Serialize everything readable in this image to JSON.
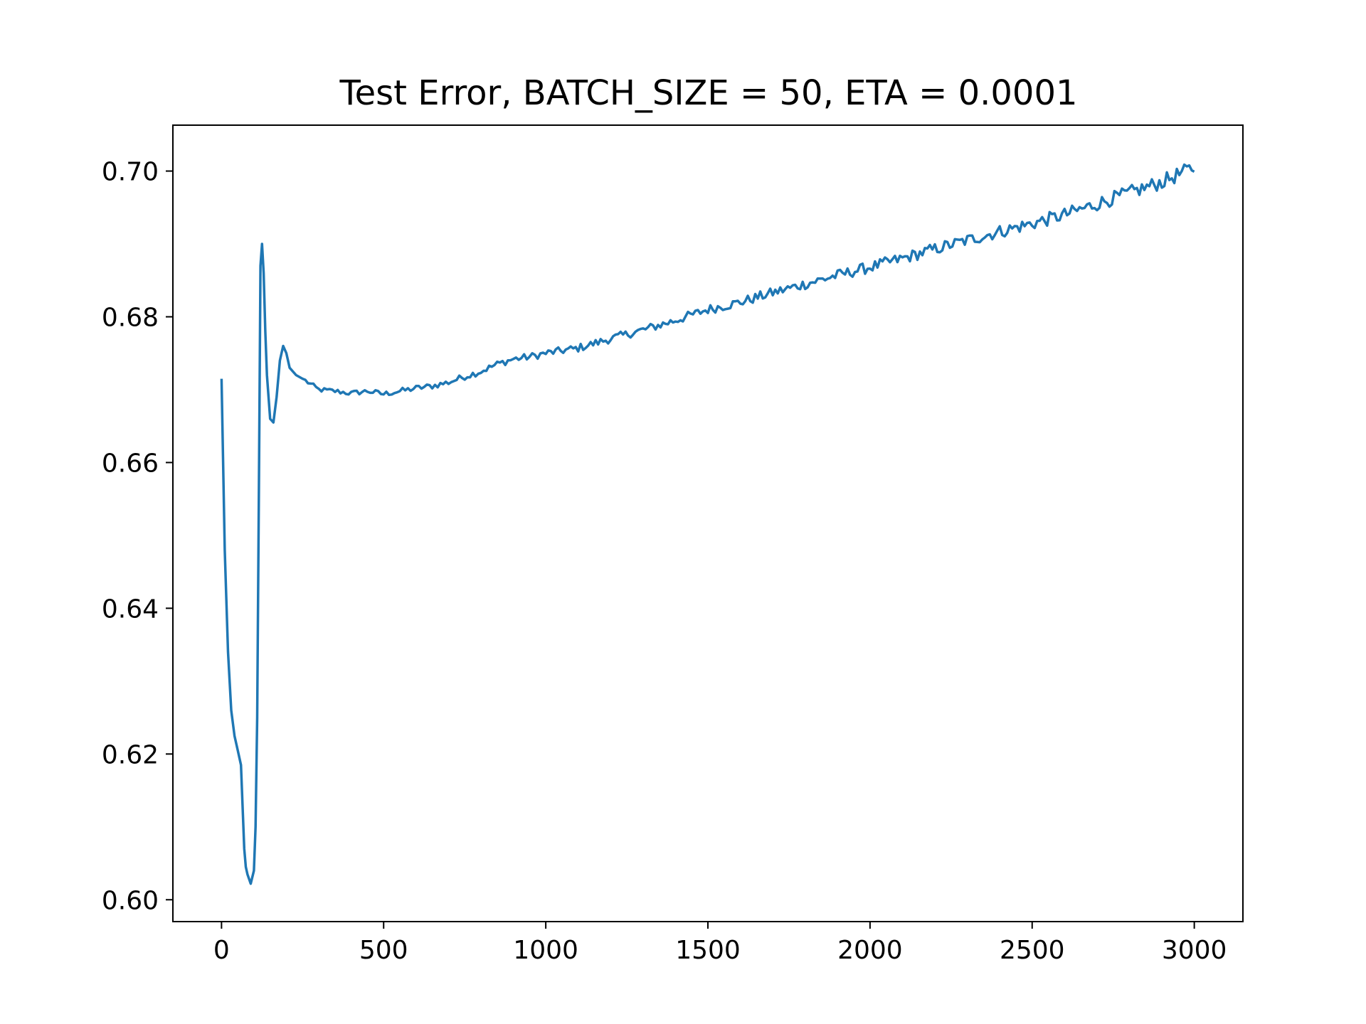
{
  "chart_data": {
    "type": "line",
    "title": "Test Error, BATCH_SIZE = 50, ETA = 0.0001",
    "xlabel": "",
    "ylabel": "",
    "xlim": [
      -150,
      3150
    ],
    "ylim": [
      0.597,
      0.7063
    ],
    "x_ticks": [
      0,
      500,
      1000,
      1500,
      2000,
      2500,
      3000
    ],
    "y_ticks": [
      0.6,
      0.62,
      0.64,
      0.66,
      0.68,
      0.7
    ],
    "x_tick_labels": [
      "0",
      "500",
      "1000",
      "1500",
      "2000",
      "2500",
      "3000"
    ],
    "y_tick_labels": [
      "0.60",
      "0.62",
      "0.64",
      "0.66",
      "0.68",
      "0.70"
    ],
    "grid": false,
    "legend": "none",
    "series": [
      {
        "color": "#1f77b4",
        "x": [
          0,
          10,
          20,
          30,
          40,
          50,
          60,
          70,
          75,
          80,
          90,
          100,
          105,
          110,
          115,
          120,
          125,
          130,
          135,
          140,
          150,
          160,
          170,
          180,
          190,
          200,
          210,
          220,
          230,
          250,
          300,
          350,
          400,
          450,
          500,
          550,
          600,
          650,
          700,
          750,
          800,
          850,
          900,
          950,
          1000,
          1100,
          1200,
          1300,
          1400,
          1500,
          1600,
          1700,
          1800,
          1900,
          2000,
          2100,
          2200,
          2300,
          2400,
          2500,
          2600,
          2700,
          2800,
          2900,
          3000
        ],
        "y": [
          0.6715,
          0.648,
          0.634,
          0.626,
          0.6225,
          0.6205,
          0.6185,
          0.607,
          0.6045,
          0.6035,
          0.6022,
          0.604,
          0.61,
          0.625,
          0.655,
          0.687,
          0.69,
          0.686,
          0.678,
          0.672,
          0.666,
          0.6655,
          0.669,
          0.674,
          0.676,
          0.675,
          0.673,
          0.6725,
          0.672,
          0.6715,
          0.67,
          0.6698,
          0.6695,
          0.6698,
          0.6694,
          0.6698,
          0.6702,
          0.6705,
          0.671,
          0.6718,
          0.6725,
          0.6735,
          0.6742,
          0.6745,
          0.675,
          0.6757,
          0.677,
          0.6782,
          0.6795,
          0.681,
          0.682,
          0.6833,
          0.6845,
          0.6857,
          0.6868,
          0.688,
          0.6893,
          0.6905,
          0.6917,
          0.6928,
          0.694,
          0.6955,
          0.697,
          0.6985,
          0.7005
        ]
      }
    ]
  }
}
